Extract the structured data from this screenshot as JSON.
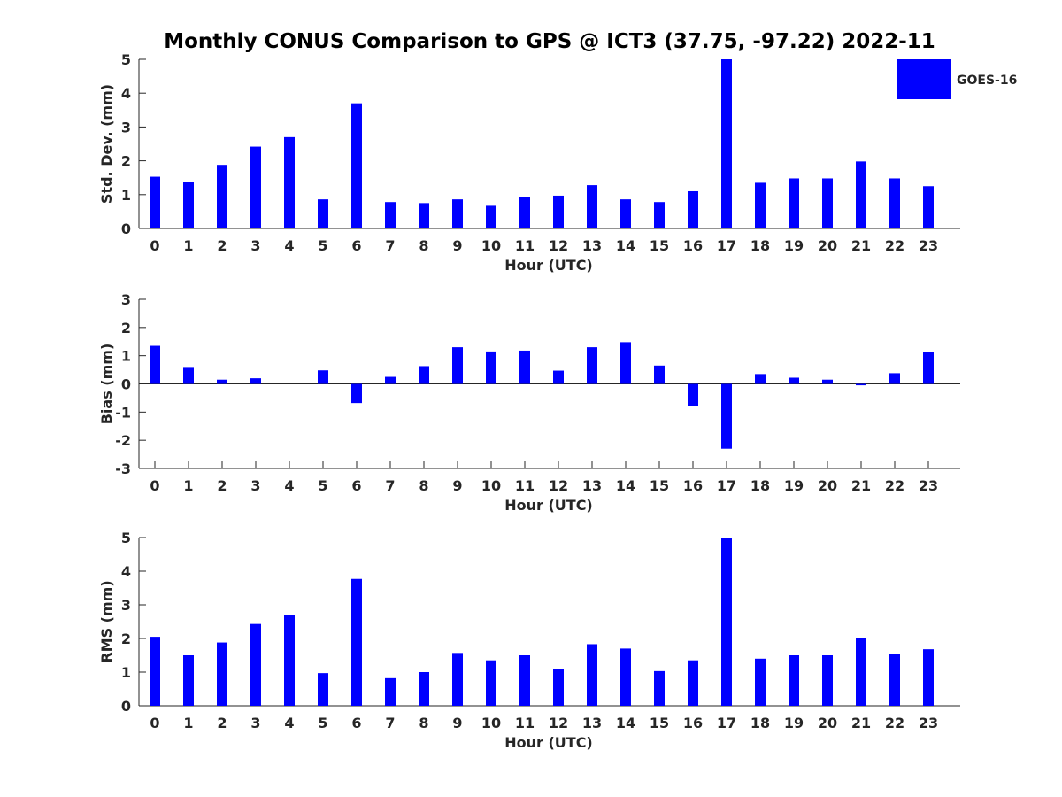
{
  "chart_data": {
    "title": "Monthly CONUS Comparison to GPS @ ICT3 (37.75, -97.22) 2022-11",
    "legend": {
      "entries": [
        "GOES-16"
      ],
      "placement": "top-right",
      "color": "#0000ff"
    },
    "bar_color": "#0000ff",
    "panels": [
      {
        "type": "bar",
        "ylabel": "Std. Dev. (mm)",
        "xlabel": "Hour (UTC)",
        "ylim": [
          0,
          5
        ],
        "yticks": [
          0,
          1,
          2,
          3,
          4,
          5
        ],
        "categories": [
          "0",
          "1",
          "2",
          "3",
          "4",
          "5",
          "6",
          "7",
          "8",
          "9",
          "10",
          "11",
          "12",
          "13",
          "14",
          "15",
          "16",
          "17",
          "18",
          "19",
          "20",
          "21",
          "22",
          "23"
        ],
        "series": [
          {
            "name": "GOES-16",
            "values": [
              1.53,
              1.38,
              1.88,
              2.42,
              2.7,
              0.86,
              3.7,
              0.78,
              0.75,
              0.86,
              0.67,
              0.92,
              0.97,
              1.28,
              0.86,
              0.78,
              1.1,
              5.0,
              1.35,
              1.48,
              1.48,
              1.98,
              1.48,
              1.25
            ]
          }
        ]
      },
      {
        "type": "bar",
        "ylabel": "Bias (mm)",
        "xlabel": "Hour (UTC)",
        "ylim": [
          -3,
          3
        ],
        "yticks": [
          -3,
          -2,
          -1,
          0,
          1,
          2,
          3
        ],
        "categories": [
          "0",
          "1",
          "2",
          "3",
          "4",
          "5",
          "6",
          "7",
          "8",
          "9",
          "10",
          "11",
          "12",
          "13",
          "14",
          "15",
          "16",
          "17",
          "18",
          "19",
          "20",
          "21",
          "22",
          "23"
        ],
        "series": [
          {
            "name": "GOES-16",
            "values": [
              1.35,
              0.6,
              0.15,
              0.2,
              0.0,
              0.48,
              -0.68,
              0.25,
              0.63,
              1.3,
              1.15,
              1.18,
              0.47,
              1.3,
              1.48,
              0.65,
              -0.8,
              -2.3,
              0.35,
              0.22,
              0.15,
              -0.05,
              0.38,
              1.12
            ]
          }
        ]
      },
      {
        "type": "bar",
        "ylabel": "RMS (mm)",
        "xlabel": "Hour (UTC)",
        "ylim": [
          0,
          5
        ],
        "yticks": [
          0,
          1,
          2,
          3,
          4,
          5
        ],
        "categories": [
          "0",
          "1",
          "2",
          "3",
          "4",
          "5",
          "6",
          "7",
          "8",
          "9",
          "10",
          "11",
          "12",
          "13",
          "14",
          "15",
          "16",
          "17",
          "18",
          "19",
          "20",
          "21",
          "22",
          "23"
        ],
        "series": [
          {
            "name": "GOES-16",
            "values": [
              2.05,
              1.5,
              1.88,
              2.43,
              2.7,
              0.97,
              3.77,
              0.82,
              1.0,
              1.57,
              1.35,
              1.5,
              1.08,
              1.83,
              1.7,
              1.03,
              1.35,
              5.0,
              1.4,
              1.5,
              1.5,
              2.0,
              1.55,
              1.68
            ]
          }
        ]
      }
    ]
  }
}
